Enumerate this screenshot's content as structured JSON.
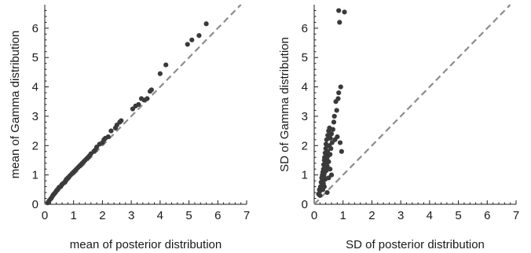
{
  "chart_data": [
    {
      "type": "scatter",
      "xlabel": "mean of posterior distribution",
      "ylabel": "mean of Gamma distribution",
      "xlim": [
        0,
        7
      ],
      "ylim": [
        0,
        6.8
      ],
      "xticks": [
        0,
        1,
        2,
        3,
        4,
        5,
        6,
        7
      ],
      "yticks": [
        0,
        1,
        2,
        3,
        4,
        5,
        6
      ],
      "reference_line": "y = x (dashed gray)",
      "grid": false,
      "point_color": "#3a3a3a",
      "points": [
        [
          0.1,
          0.05
        ],
        [
          0.15,
          0.12
        ],
        [
          0.2,
          0.18
        ],
        [
          0.22,
          0.2
        ],
        [
          0.25,
          0.25
        ],
        [
          0.28,
          0.3
        ],
        [
          0.3,
          0.33
        ],
        [
          0.32,
          0.35
        ],
        [
          0.35,
          0.38
        ],
        [
          0.38,
          0.42
        ],
        [
          0.4,
          0.45
        ],
        [
          0.42,
          0.48
        ],
        [
          0.45,
          0.5
        ],
        [
          0.48,
          0.55
        ],
        [
          0.5,
          0.58
        ],
        [
          0.55,
          0.6
        ],
        [
          0.58,
          0.65
        ],
        [
          0.6,
          0.68
        ],
        [
          0.65,
          0.72
        ],
        [
          0.7,
          0.75
        ],
        [
          0.72,
          0.8
        ],
        [
          0.75,
          0.85
        ],
        [
          0.8,
          0.9
        ],
        [
          0.85,
          0.95
        ],
        [
          0.9,
          1.0
        ],
        [
          0.95,
          1.05
        ],
        [
          1.0,
          1.1
        ],
        [
          1.05,
          1.15
        ],
        [
          1.1,
          1.2
        ],
        [
          1.15,
          1.25
        ],
        [
          1.2,
          1.3
        ],
        [
          1.25,
          1.35
        ],
        [
          1.3,
          1.4
        ],
        [
          1.35,
          1.45
        ],
        [
          1.4,
          1.5
        ],
        [
          1.45,
          1.55
        ],
        [
          1.5,
          1.6
        ],
        [
          1.55,
          1.65
        ],
        [
          1.6,
          1.72
        ],
        [
          1.7,
          1.8
        ],
        [
          1.75,
          1.85
        ],
        [
          1.8,
          1.95
        ],
        [
          1.9,
          2.05
        ],
        [
          2.0,
          2.1
        ],
        [
          2.05,
          2.2
        ],
        [
          2.1,
          2.25
        ],
        [
          2.2,
          2.3
        ],
        [
          2.3,
          2.5
        ],
        [
          2.45,
          2.6
        ],
        [
          2.5,
          2.7
        ],
        [
          2.6,
          2.8
        ],
        [
          2.65,
          2.85
        ],
        [
          3.05,
          3.25
        ],
        [
          3.15,
          3.35
        ],
        [
          3.25,
          3.4
        ],
        [
          3.35,
          3.6
        ],
        [
          3.45,
          3.55
        ],
        [
          3.55,
          3.6
        ],
        [
          3.65,
          3.85
        ],
        [
          3.7,
          3.9
        ],
        [
          4.0,
          4.45
        ],
        [
          4.2,
          4.75
        ],
        [
          4.95,
          5.45
        ],
        [
          5.1,
          5.6
        ],
        [
          5.35,
          5.75
        ],
        [
          5.6,
          6.15
        ]
      ]
    },
    {
      "type": "scatter",
      "xlabel": "SD of posterior distribution",
      "ylabel": "SD of Gamma distribution",
      "xlim": [
        0,
        7
      ],
      "ylim": [
        0,
        6.8
      ],
      "xticks": [
        0,
        1,
        2,
        3,
        4,
        5,
        6,
        7
      ],
      "yticks": [
        0,
        1,
        2,
        3,
        4,
        5,
        6
      ],
      "reference_line": "y = x (dashed gray)",
      "grid": false,
      "point_color": "#3a3a3a",
      "points": [
        [
          0.15,
          0.35
        ],
        [
          0.18,
          0.5
        ],
        [
          0.2,
          0.45
        ],
        [
          0.22,
          0.6
        ],
        [
          0.24,
          0.75
        ],
        [
          0.25,
          0.55
        ],
        [
          0.26,
          0.9
        ],
        [
          0.28,
          1.0
        ],
        [
          0.28,
          0.65
        ],
        [
          0.3,
          1.1
        ],
        [
          0.3,
          0.8
        ],
        [
          0.32,
          1.2
        ],
        [
          0.32,
          0.7
        ],
        [
          0.33,
          1.35
        ],
        [
          0.34,
          0.95
        ],
        [
          0.35,
          1.5
        ],
        [
          0.35,
          1.05
        ],
        [
          0.36,
          1.6
        ],
        [
          0.37,
          1.25
        ],
        [
          0.38,
          1.75
        ],
        [
          0.38,
          0.85
        ],
        [
          0.4,
          1.9
        ],
        [
          0.4,
          1.4
        ],
        [
          0.41,
          2.05
        ],
        [
          0.42,
          1.15
        ],
        [
          0.43,
          2.2
        ],
        [
          0.44,
          1.55
        ],
        [
          0.45,
          1.3
        ],
        [
          0.46,
          1.8
        ],
        [
          0.47,
          2.35
        ],
        [
          0.48,
          1.65
        ],
        [
          0.5,
          2.5
        ],
        [
          0.5,
          1.45
        ],
        [
          0.52,
          2.0
        ],
        [
          0.53,
          2.6
        ],
        [
          0.55,
          1.7
        ],
        [
          0.56,
          2.25
        ],
        [
          0.58,
          1.9
        ],
        [
          0.6,
          2.4
        ],
        [
          0.62,
          2.1
        ],
        [
          0.65,
          2.55
        ],
        [
          0.68,
          2.8
        ],
        [
          0.7,
          3.0
        ],
        [
          0.72,
          2.2
        ],
        [
          0.75,
          3.5
        ],
        [
          0.78,
          3.2
        ],
        [
          0.8,
          2.3
        ],
        [
          0.83,
          3.6
        ],
        [
          0.85,
          3.8
        ],
        [
          0.88,
          6.2
        ],
        [
          0.9,
          2.1
        ],
        [
          0.92,
          4.0
        ],
        [
          0.95,
          1.8
        ],
        [
          0.85,
          6.6
        ],
        [
          1.05,
          6.55
        ],
        [
          0.2,
          0.3
        ],
        [
          0.45,
          0.4
        ],
        [
          0.35,
          0.6
        ],
        [
          0.6,
          1.0
        ],
        [
          0.5,
          0.9
        ],
        [
          0.3,
          0.5
        ],
        [
          0.55,
          1.2
        ]
      ]
    }
  ]
}
